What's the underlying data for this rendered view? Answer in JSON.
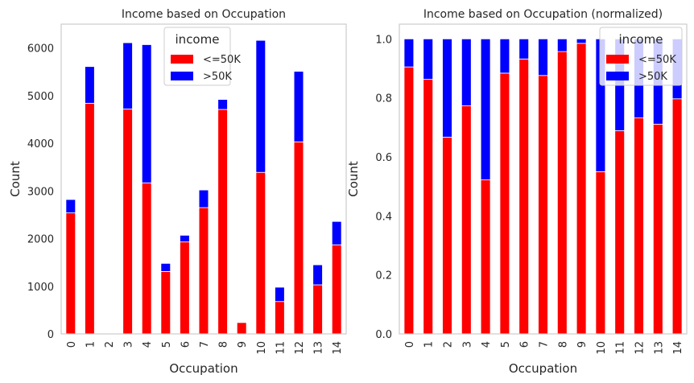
{
  "chart_data": [
    {
      "type": "bar",
      "stacked": true,
      "title": "Income based on Occupation",
      "xlabel": "Occupation",
      "ylabel": "Count",
      "categories": [
        "0",
        "1",
        "2",
        "3",
        "4",
        "5",
        "6",
        "7",
        "8",
        "9",
        "10",
        "11",
        "12",
        "13",
        "14"
      ],
      "ylim": [
        0,
        6500
      ],
      "yticks": [
        0,
        1000,
        2000,
        3000,
        4000,
        5000,
        6000
      ],
      "grid": false,
      "legend": {
        "title": "income",
        "placement": "top-center"
      },
      "series": [
        {
          "name": "<=50K",
          "color": "#ff0000",
          "values": [
            2540,
            4840,
            9,
            4720,
            3170,
            1310,
            1930,
            2650,
            4710,
            240,
            3390,
            680,
            4030,
            1030,
            1870
          ]
        },
        {
          "name": ">50K",
          "color": "#0000ff",
          "values": [
            280,
            770,
            1,
            1390,
            2900,
            170,
            140,
            370,
            210,
            4,
            2770,
            300,
            1480,
            420,
            490
          ]
        }
      ]
    },
    {
      "type": "bar",
      "stacked": true,
      "title": "Income based on Occupation (normalized)",
      "xlabel": "Occupation",
      "ylabel": "Count",
      "categories": [
        "0",
        "1",
        "2",
        "3",
        "4",
        "5",
        "6",
        "7",
        "8",
        "9",
        "10",
        "11",
        "12",
        "13",
        "14"
      ],
      "ylim": [
        0,
        1.05
      ],
      "yticks": [
        0.0,
        0.2,
        0.4,
        0.6,
        0.8,
        1.0
      ],
      "grid": false,
      "legend": {
        "title": "income",
        "placement": "top-right"
      },
      "series": [
        {
          "name": "<=50K",
          "color": "#ff0000",
          "values": [
            0.905,
            0.863,
            0.667,
            0.773,
            0.522,
            0.884,
            0.932,
            0.876,
            0.957,
            0.985,
            0.55,
            0.689,
            0.732,
            0.711,
            0.797
          ]
        },
        {
          "name": ">50K",
          "color": "#0000ff",
          "values": [
            0.095,
            0.137,
            0.333,
            0.227,
            0.478,
            0.116,
            0.068,
            0.124,
            0.043,
            0.015,
            0.45,
            0.311,
            0.268,
            0.289,
            0.203
          ]
        }
      ]
    }
  ]
}
